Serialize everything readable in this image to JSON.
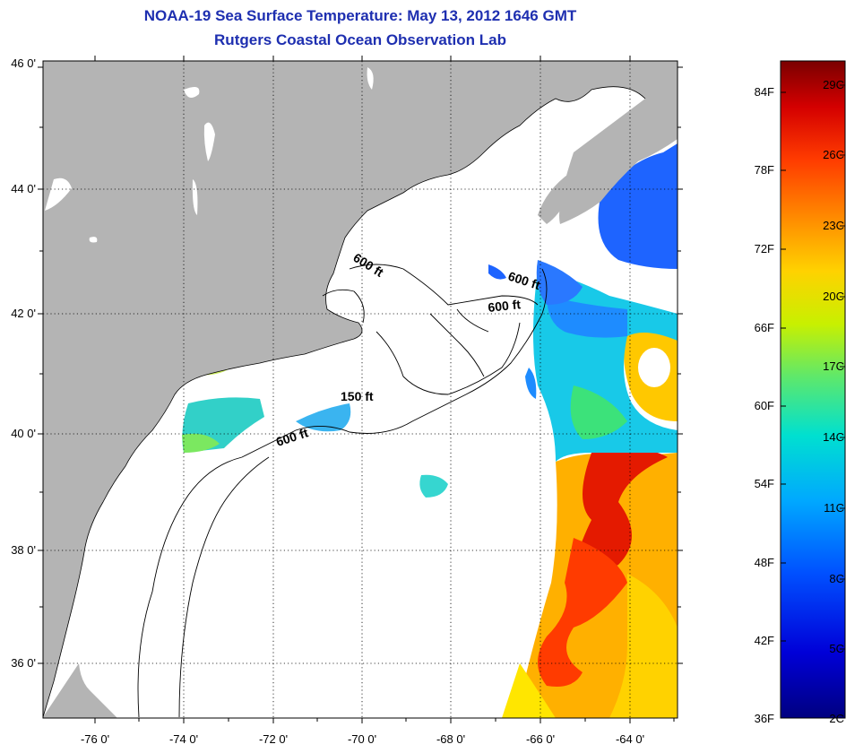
{
  "title": {
    "line1": "NOAA-19 Sea Surface Temperature:  May 13, 2012 1646 GMT",
    "line2": "Rutgers Coastal Ocean Observation Lab"
  },
  "map": {
    "lat_labels": [
      "46 0'",
      "44 0'",
      "42 0'",
      "40 0'",
      "38 0'",
      "36 0'"
    ],
    "lon_labels": [
      "-76 0'",
      "-74 0'",
      "-72 0'",
      "-70 0'",
      "-68 0'",
      "-66 0'",
      "-64 0'"
    ],
    "isobath_labels": [
      "600 ft",
      "600 ft",
      "600 ft",
      "150 ft",
      "600 ft"
    ],
    "land_color": "#b4b4b4",
    "cloud_color": "#ffffff"
  },
  "colorbar": {
    "fahrenheit_labels": [
      "84F",
      "78F",
      "72F",
      "66F",
      "60F",
      "54F",
      "48F",
      "42F",
      "36F"
    ],
    "celsius_labels": [
      "29C",
      "26C",
      "23C",
      "20C",
      "17C",
      "14C",
      "11C",
      "8C",
      "5C",
      "2C"
    ],
    "colors": [
      "#7a0000",
      "#d40000",
      "#ff3b00",
      "#ff8c00",
      "#ffd200",
      "#c8f000",
      "#5fe86a",
      "#00e0d0",
      "#00a8ff",
      "#0050ff",
      "#0000d8",
      "#000080"
    ]
  }
}
